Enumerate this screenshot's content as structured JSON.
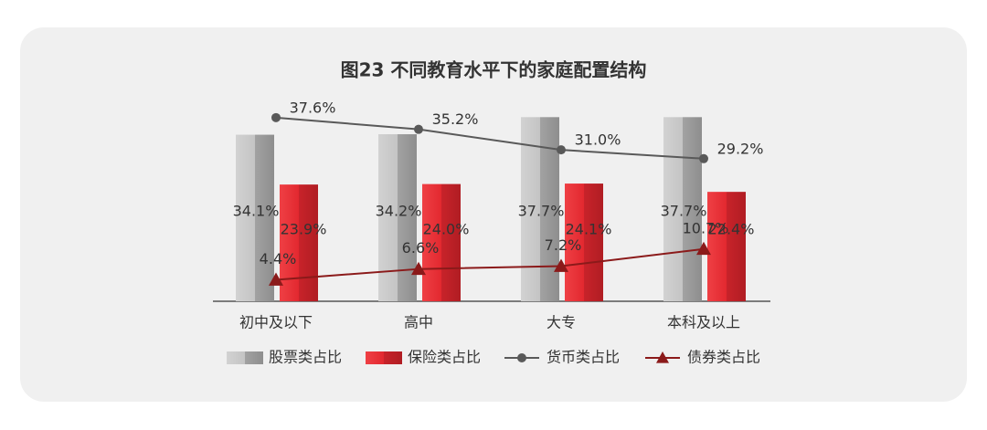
{
  "chart_data": {
    "type": "bar",
    "title": "图23 不同教育水平下的家庭配置结构",
    "categories": [
      "初中及以下",
      "高中",
      "大专",
      "本科及以上"
    ],
    "series": [
      {
        "name": "股票类占比",
        "type": "bar",
        "color": "#a6a6a6",
        "values": [
          34.1,
          34.2,
          37.7,
          37.7
        ],
        "value_labels": [
          "34.1%",
          "34.2%",
          "37.7%",
          "37.7%"
        ]
      },
      {
        "name": "保险类占比",
        "type": "bar",
        "color": "#d9252c",
        "values": [
          23.9,
          24.0,
          24.1,
          22.4
        ],
        "value_labels": [
          "23.9%",
          "24.0%",
          "24.1%",
          "22.4%"
        ]
      },
      {
        "name": "货币类占比",
        "type": "line",
        "marker": "circle",
        "color": "#595959",
        "values": [
          37.6,
          35.2,
          31.0,
          29.2
        ],
        "value_labels": [
          "37.6%",
          "35.2%",
          "31.0%",
          "29.2%"
        ]
      },
      {
        "name": "债券类占比",
        "type": "line",
        "marker": "triangle",
        "color": "#8b1a1a",
        "values": [
          4.4,
          6.6,
          7.2,
          10.7
        ],
        "value_labels": [
          "4.4%",
          "6.6%",
          "7.2%",
          "10.7%"
        ]
      }
    ]
  }
}
